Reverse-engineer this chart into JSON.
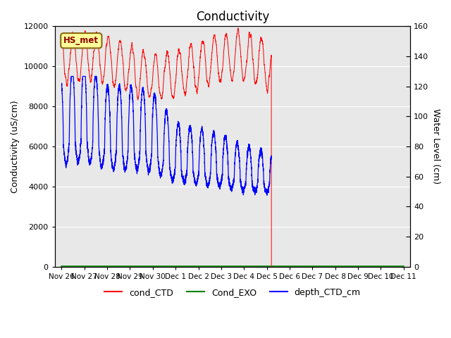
{
  "title": "Conductivity",
  "ylabel_left": "Conductivity (uS/cm)",
  "ylabel_right": "Water Level (cm)",
  "ylim_left": [
    0,
    12000
  ],
  "ylim_right": [
    0,
    160
  ],
  "yticks_left": [
    0,
    2000,
    4000,
    6000,
    8000,
    10000,
    12000
  ],
  "yticks_right": [
    0,
    20,
    40,
    60,
    80,
    100,
    120,
    140,
    160
  ],
  "background_color": "#e8e8e8",
  "annotation_text": "HS_met",
  "annotation_box_facecolor": "#ffff99",
  "annotation_box_edgecolor": "#8B6914",
  "legend_entries": [
    "cond_CTD",
    "Cond_EXO",
    "depth_CTD_cm"
  ],
  "legend_colors": [
    "red",
    "green",
    "blue"
  ],
  "title_fontsize": 12,
  "axis_label_fontsize": 9,
  "tick_fontsize": 8,
  "x_tick_labels": [
    "Nov 26",
    "Nov 27",
    "Nov 28",
    "Nov 29",
    "Nov 30",
    "Dec 1",
    "Dec 2",
    "Dec 3",
    "Dec 4",
    "Dec 5",
    "Dec 6",
    "Dec 7",
    "Dec 8",
    "Dec 9",
    "Dec 10",
    "Dec 11"
  ],
  "x_tick_positions": [
    0,
    1,
    2,
    3,
    4,
    5,
    6,
    7,
    8,
    9,
    10,
    11,
    12,
    13,
    14,
    15
  ],
  "xlim": [
    -0.3,
    15.3
  ],
  "data_end_day": 9.2
}
